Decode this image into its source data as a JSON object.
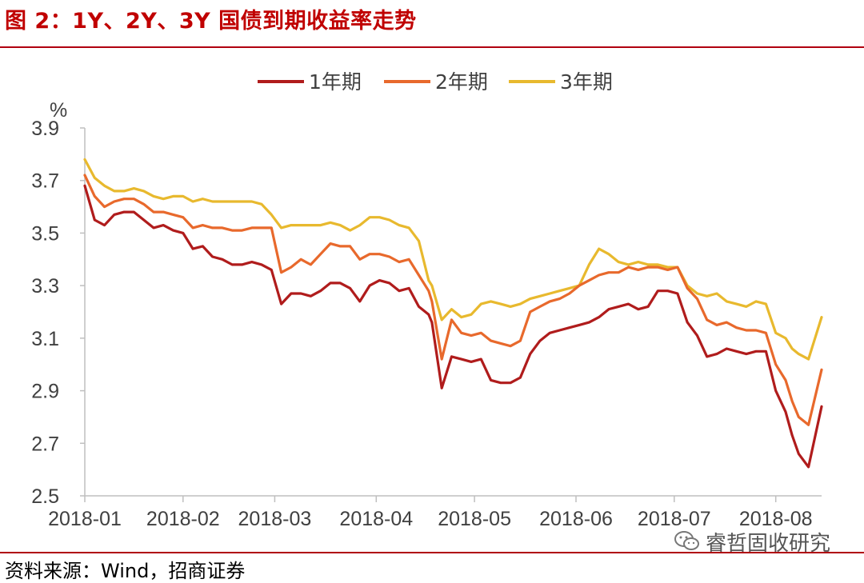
{
  "figure_title": "图 2：1Y、2Y、3Y 国债到期收益率走势",
  "source_note": "资料来源：Wind，招商证券",
  "watermark": "睿哲固收研究",
  "chart_data": {
    "type": "line",
    "title": "",
    "xlabel": "",
    "ylabel": "%",
    "ylim": [
      2.5,
      3.9
    ],
    "yticks": [
      "2.5",
      "2.7",
      "2.9",
      "3.1",
      "3.3",
      "3.5",
      "3.7",
      "3.9"
    ],
    "xticks": [
      {
        "label": "2018-01",
        "x": "2018-01-02"
      },
      {
        "label": "2018-02",
        "x": "2018-02-01"
      },
      {
        "label": "2018-03",
        "x": "2018-03-01"
      },
      {
        "label": "2018-04",
        "x": "2018-04-01"
      },
      {
        "label": "2018-05",
        "x": "2018-05-01"
      },
      {
        "label": "2018-06",
        "x": "2018-06-01"
      },
      {
        "label": "2018-07",
        "x": "2018-07-01"
      },
      {
        "label": "2018-08",
        "x": "2018-08-01"
      }
    ],
    "x_range": [
      "2018-01-02",
      "2018-08-15"
    ],
    "legend_position": "top",
    "grid": false,
    "series": [
      {
        "name": "1年期",
        "color": "#b01c1c",
        "x": [
          "2018-01-02",
          "2018-01-05",
          "2018-01-08",
          "2018-01-11",
          "2018-01-14",
          "2018-01-17",
          "2018-01-20",
          "2018-01-23",
          "2018-01-26",
          "2018-01-29",
          "2018-02-01",
          "2018-02-04",
          "2018-02-07",
          "2018-02-10",
          "2018-02-13",
          "2018-02-16",
          "2018-02-19",
          "2018-02-22",
          "2018-02-25",
          "2018-02-28",
          "2018-03-03",
          "2018-03-06",
          "2018-03-09",
          "2018-03-12",
          "2018-03-15",
          "2018-03-18",
          "2018-03-21",
          "2018-03-24",
          "2018-03-27",
          "2018-03-30",
          "2018-04-02",
          "2018-04-05",
          "2018-04-08",
          "2018-04-11",
          "2018-04-14",
          "2018-04-17",
          "2018-04-18",
          "2018-04-21",
          "2018-04-24",
          "2018-04-27",
          "2018-04-30",
          "2018-05-03",
          "2018-05-06",
          "2018-05-09",
          "2018-05-12",
          "2018-05-15",
          "2018-05-18",
          "2018-05-21",
          "2018-05-24",
          "2018-05-27",
          "2018-05-30",
          "2018-06-02",
          "2018-06-05",
          "2018-06-08",
          "2018-06-11",
          "2018-06-14",
          "2018-06-17",
          "2018-06-20",
          "2018-06-23",
          "2018-06-26",
          "2018-06-29",
          "2018-07-02",
          "2018-07-05",
          "2018-07-08",
          "2018-07-11",
          "2018-07-14",
          "2018-07-17",
          "2018-07-20",
          "2018-07-23",
          "2018-07-26",
          "2018-07-29",
          "2018-08-01",
          "2018-08-04",
          "2018-08-06",
          "2018-08-08",
          "2018-08-11",
          "2018-08-15"
        ],
        "values": [
          3.68,
          3.55,
          3.53,
          3.57,
          3.58,
          3.58,
          3.55,
          3.52,
          3.53,
          3.51,
          3.5,
          3.44,
          3.45,
          3.41,
          3.4,
          3.38,
          3.38,
          3.39,
          3.38,
          3.36,
          3.23,
          3.27,
          3.27,
          3.26,
          3.28,
          3.31,
          3.31,
          3.29,
          3.24,
          3.3,
          3.32,
          3.31,
          3.28,
          3.29,
          3.22,
          3.19,
          3.16,
          2.91,
          3.03,
          3.02,
          3.01,
          3.02,
          2.94,
          2.93,
          2.93,
          2.95,
          3.04,
          3.09,
          3.12,
          3.13,
          3.14,
          3.15,
          3.16,
          3.18,
          3.21,
          3.22,
          3.23,
          3.21,
          3.22,
          3.28,
          3.28,
          3.27,
          3.16,
          3.11,
          3.03,
          3.04,
          3.06,
          3.05,
          3.04,
          3.05,
          3.05,
          2.9,
          2.82,
          2.73,
          2.66,
          2.61,
          2.84
        ]
      },
      {
        "name": "2年期",
        "color": "#e8692c",
        "x": [
          "2018-01-02",
          "2018-01-05",
          "2018-01-08",
          "2018-01-11",
          "2018-01-14",
          "2018-01-17",
          "2018-01-20",
          "2018-01-23",
          "2018-01-26",
          "2018-01-29",
          "2018-02-01",
          "2018-02-04",
          "2018-02-07",
          "2018-02-10",
          "2018-02-13",
          "2018-02-16",
          "2018-02-19",
          "2018-02-22",
          "2018-02-25",
          "2018-02-28",
          "2018-03-03",
          "2018-03-06",
          "2018-03-09",
          "2018-03-12",
          "2018-03-15",
          "2018-03-18",
          "2018-03-21",
          "2018-03-24",
          "2018-03-27",
          "2018-03-30",
          "2018-04-02",
          "2018-04-05",
          "2018-04-08",
          "2018-04-11",
          "2018-04-14",
          "2018-04-17",
          "2018-04-18",
          "2018-04-21",
          "2018-04-24",
          "2018-04-27",
          "2018-04-30",
          "2018-05-03",
          "2018-05-06",
          "2018-05-09",
          "2018-05-12",
          "2018-05-15",
          "2018-05-18",
          "2018-05-21",
          "2018-05-24",
          "2018-05-27",
          "2018-05-30",
          "2018-06-02",
          "2018-06-05",
          "2018-06-08",
          "2018-06-11",
          "2018-06-14",
          "2018-06-17",
          "2018-06-20",
          "2018-06-23",
          "2018-06-26",
          "2018-06-29",
          "2018-07-02",
          "2018-07-05",
          "2018-07-08",
          "2018-07-11",
          "2018-07-14",
          "2018-07-17",
          "2018-07-20",
          "2018-07-23",
          "2018-07-26",
          "2018-07-29",
          "2018-08-01",
          "2018-08-04",
          "2018-08-06",
          "2018-08-08",
          "2018-08-11",
          "2018-08-15"
        ],
        "values": [
          3.72,
          3.64,
          3.6,
          3.62,
          3.63,
          3.63,
          3.61,
          3.58,
          3.58,
          3.57,
          3.56,
          3.52,
          3.53,
          3.52,
          3.52,
          3.51,
          3.51,
          3.52,
          3.52,
          3.52,
          3.35,
          3.37,
          3.4,
          3.38,
          3.42,
          3.46,
          3.45,
          3.45,
          3.4,
          3.42,
          3.42,
          3.41,
          3.39,
          3.4,
          3.34,
          3.28,
          3.24,
          3.02,
          3.17,
          3.12,
          3.11,
          3.12,
          3.09,
          3.08,
          3.07,
          3.09,
          3.2,
          3.22,
          3.24,
          3.25,
          3.27,
          3.3,
          3.32,
          3.34,
          3.35,
          3.35,
          3.37,
          3.36,
          3.37,
          3.37,
          3.36,
          3.37,
          3.29,
          3.25,
          3.17,
          3.15,
          3.16,
          3.14,
          3.13,
          3.13,
          3.12,
          3.0,
          2.94,
          2.86,
          2.8,
          2.77,
          2.98
        ]
      },
      {
        "name": "3年期",
        "color": "#e8b92e",
        "x": [
          "2018-01-02",
          "2018-01-05",
          "2018-01-08",
          "2018-01-11",
          "2018-01-14",
          "2018-01-17",
          "2018-01-20",
          "2018-01-23",
          "2018-01-26",
          "2018-01-29",
          "2018-02-01",
          "2018-02-04",
          "2018-02-07",
          "2018-02-10",
          "2018-02-13",
          "2018-02-16",
          "2018-02-19",
          "2018-02-22",
          "2018-02-25",
          "2018-02-28",
          "2018-03-03",
          "2018-03-06",
          "2018-03-09",
          "2018-03-12",
          "2018-03-15",
          "2018-03-18",
          "2018-03-21",
          "2018-03-24",
          "2018-03-27",
          "2018-03-30",
          "2018-04-02",
          "2018-04-05",
          "2018-04-08",
          "2018-04-11",
          "2018-04-14",
          "2018-04-17",
          "2018-04-18",
          "2018-04-21",
          "2018-04-24",
          "2018-04-27",
          "2018-04-30",
          "2018-05-03",
          "2018-05-06",
          "2018-05-09",
          "2018-05-12",
          "2018-05-15",
          "2018-05-18",
          "2018-05-21",
          "2018-05-24",
          "2018-05-27",
          "2018-05-30",
          "2018-06-02",
          "2018-06-05",
          "2018-06-08",
          "2018-06-11",
          "2018-06-14",
          "2018-06-17",
          "2018-06-20",
          "2018-06-23",
          "2018-06-26",
          "2018-06-29",
          "2018-07-02",
          "2018-07-05",
          "2018-07-08",
          "2018-07-11",
          "2018-07-14",
          "2018-07-17",
          "2018-07-20",
          "2018-07-23",
          "2018-07-26",
          "2018-07-29",
          "2018-08-01",
          "2018-08-04",
          "2018-08-06",
          "2018-08-08",
          "2018-08-11",
          "2018-08-15"
        ],
        "values": [
          3.78,
          3.71,
          3.68,
          3.66,
          3.66,
          3.67,
          3.66,
          3.64,
          3.63,
          3.64,
          3.64,
          3.62,
          3.63,
          3.62,
          3.62,
          3.62,
          3.62,
          3.62,
          3.61,
          3.57,
          3.52,
          3.53,
          3.53,
          3.53,
          3.53,
          3.54,
          3.53,
          3.51,
          3.53,
          3.56,
          3.56,
          3.55,
          3.53,
          3.52,
          3.47,
          3.32,
          3.3,
          3.17,
          3.21,
          3.18,
          3.19,
          3.23,
          3.24,
          3.23,
          3.22,
          3.23,
          3.25,
          3.26,
          3.27,
          3.28,
          3.29,
          3.3,
          3.38,
          3.44,
          3.42,
          3.39,
          3.38,
          3.39,
          3.38,
          3.38,
          3.37,
          3.37,
          3.3,
          3.27,
          3.26,
          3.27,
          3.24,
          3.23,
          3.22,
          3.24,
          3.23,
          3.12,
          3.1,
          3.06,
          3.04,
          3.02,
          3.18
        ]
      }
    ]
  }
}
